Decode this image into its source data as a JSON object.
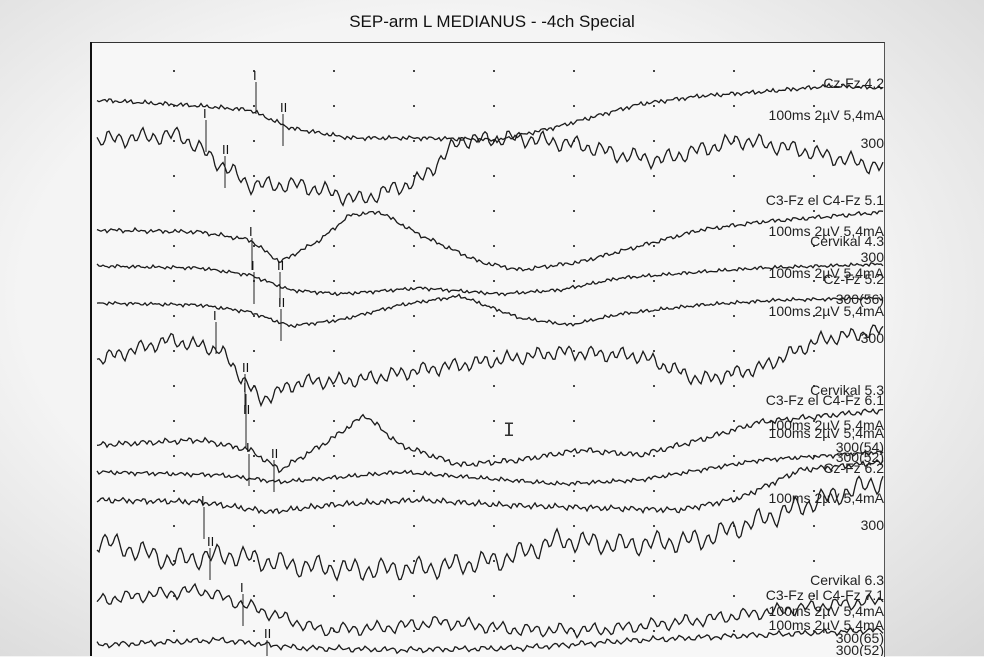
{
  "screen": {
    "title": "SEP-arm L MEDIANUS - -4ch Special",
    "trace_color": "#1a1a1a",
    "background_color": "#f4f4f4"
  },
  "labels": [
    {
      "text": "Cz-Fz 4.2"
    },
    {
      "text": "100ms 2µV 5,4mA"
    },
    {
      "text": "300"
    },
    {
      "text": "C3-Fz el C4-Fz 5.1"
    },
    {
      "text": "100ms 2µV 5,4mA"
    },
    {
      "text": "Cervikal 4.3"
    },
    {
      "text": "300"
    },
    {
      "text": "100ms 2µV 5,4mA"
    },
    {
      "text": "Cz-Fz 5.2"
    },
    {
      "text": "300(56)"
    },
    {
      "text": "100ms 2µV 5,4mA"
    },
    {
      "text": "300"
    },
    {
      "text": "Cervikal 5.3"
    },
    {
      "text": "C3-Fz el C4-Fz 6.1"
    },
    {
      "text": "100ms 2µV 5,4mA"
    },
    {
      "text": "100ms 2µV 5,4mA"
    },
    {
      "text": "300(54)"
    },
    {
      "text": "300(52)"
    },
    {
      "text": "Cz-Fz 6.2"
    },
    {
      "text": "100ms 2µV 5,4mA"
    },
    {
      "text": "300"
    },
    {
      "text": "Cervikal 6.3"
    },
    {
      "text": "C3-Fz el C4-Fz 7.1"
    },
    {
      "text": "100ms 2µV 5,4mA"
    },
    {
      "text": "100ms 2µV 5,4mA"
    },
    {
      "text": "300(65)"
    },
    {
      "text": "300(52)"
    }
  ],
  "markers": [
    "I",
    "II"
  ]
}
